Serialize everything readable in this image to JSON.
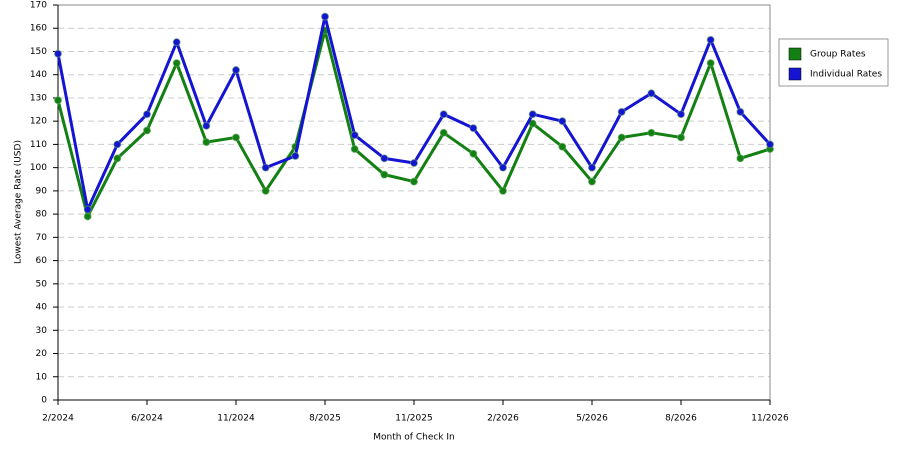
{
  "chart_data": {
    "type": "line",
    "x_label": "Month of Check In",
    "y_label": "Lowest Average Rate (USD)",
    "categories": [
      "2/2024",
      null,
      null,
      "6/2024",
      null,
      null,
      "11/2024",
      null,
      null,
      "8/2025",
      null,
      null,
      "11/2025",
      null,
      null,
      "2/2026",
      null,
      null,
      "5/2026",
      null,
      null,
      "8/2026",
      null,
      null,
      "11/2026"
    ],
    "series": [
      {
        "name": "Group Rates",
        "color": "#138013",
        "values": [
          129,
          79,
          104,
          116,
          145,
          111,
          113,
          90,
          109,
          159,
          108,
          97,
          94,
          115,
          106,
          90,
          119,
          109,
          94,
          113,
          115,
          113,
          145,
          104,
          108
        ]
      },
      {
        "name": "Individual Rates",
        "color": "#1414d2",
        "values": [
          149,
          82,
          110,
          123,
          154,
          118,
          142,
          100,
          105,
          165,
          114,
          104,
          102,
          123,
          117,
          100,
          123,
          120,
          100,
          124,
          132,
          123,
          155,
          124,
          110
        ]
      }
    ],
    "ylim": [
      0,
      170
    ],
    "yticks": [
      0,
      10,
      20,
      30,
      40,
      50,
      60,
      70,
      80,
      90,
      100,
      110,
      120,
      130,
      140,
      150,
      160,
      170
    ],
    "grid": true,
    "legend": "right"
  }
}
